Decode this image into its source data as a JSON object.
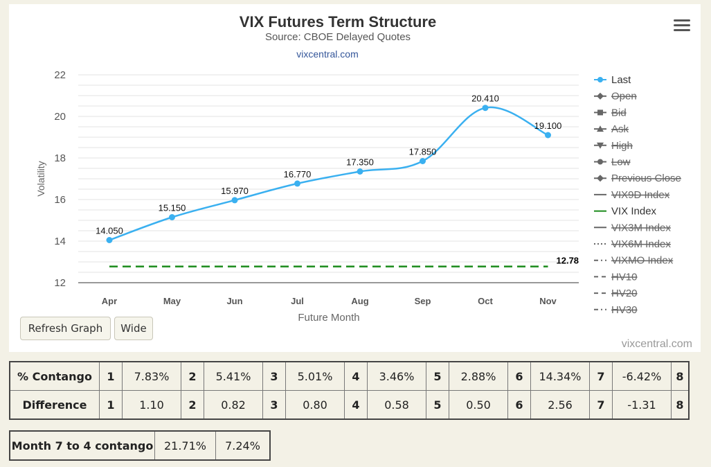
{
  "chart": {
    "title": "VIX Futures Term Structure",
    "subtitle": "Source: CBOE Delayed Quotes",
    "source_link": "vixcentral.com",
    "credit": "vixcentral.com",
    "menu_icon": "hamburger-menu-icon",
    "buttons": {
      "refresh": "Refresh Graph",
      "wide": "Wide"
    },
    "colors": {
      "last": "#3ab0f0",
      "vix_index": "#1a8a1a"
    }
  },
  "chart_data": {
    "type": "line",
    "xlabel": "Future Month",
    "ylabel": "Volatility",
    "ylim": [
      12,
      22
    ],
    "yticks": [
      12,
      14,
      16,
      18,
      20,
      22
    ],
    "categories": [
      "Apr",
      "May",
      "Jun",
      "Jul",
      "Aug",
      "Sep",
      "Oct",
      "Nov"
    ],
    "series": [
      {
        "name": "Last",
        "values": [
          14.05,
          15.15,
          15.97,
          16.77,
          17.35,
          17.85,
          20.41,
          19.1
        ],
        "labels": [
          "14.050",
          "15.150",
          "15.970",
          "16.770",
          "17.350",
          "17.850",
          "20.410",
          "19.100"
        ]
      },
      {
        "name": "VIX Index",
        "value": 12.78,
        "label": "12.78"
      }
    ],
    "legend": {
      "placement": "right",
      "items": [
        {
          "name": "Last",
          "active": true,
          "symbol": "circle"
        },
        {
          "name": "Open",
          "active": false,
          "symbol": "diamond"
        },
        {
          "name": "Bid",
          "active": false,
          "symbol": "square"
        },
        {
          "name": "Ask",
          "active": false,
          "symbol": "triangle"
        },
        {
          "name": "High",
          "active": false,
          "symbol": "triangle-down"
        },
        {
          "name": "Low",
          "active": false,
          "symbol": "circle"
        },
        {
          "name": "Previous Close",
          "active": false,
          "symbol": "diamond"
        },
        {
          "name": "VIX9D Index",
          "active": false,
          "symbol": "solid"
        },
        {
          "name": "VIX Index",
          "active": true,
          "symbol": "solid-green"
        },
        {
          "name": "VIX3M Index",
          "active": false,
          "symbol": "solid"
        },
        {
          "name": "VIX6M Index",
          "active": false,
          "symbol": "dotted"
        },
        {
          "name": "VIXMO Index",
          "active": false,
          "symbol": "dashdot"
        },
        {
          "name": "HV10",
          "active": false,
          "symbol": "dash"
        },
        {
          "name": "HV20",
          "active": false,
          "symbol": "dash"
        },
        {
          "name": "HV30",
          "active": false,
          "symbol": "dashdot"
        }
      ]
    }
  },
  "contango_table": {
    "rows": [
      {
        "label": "% Contango",
        "cells": [
          [
            "1",
            "7.83%"
          ],
          [
            "2",
            "5.41%"
          ],
          [
            "3",
            "5.01%"
          ],
          [
            "4",
            "3.46%"
          ],
          [
            "5",
            "2.88%"
          ],
          [
            "6",
            "14.34%"
          ],
          [
            "7",
            "-6.42%"
          ]
        ],
        "last": "8"
      },
      {
        "label": "Difference",
        "cells": [
          [
            "1",
            "1.10"
          ],
          [
            "2",
            "0.82"
          ],
          [
            "3",
            "0.80"
          ],
          [
            "4",
            "0.58"
          ],
          [
            "5",
            "0.50"
          ],
          [
            "6",
            "2.56"
          ],
          [
            "7",
            "-1.31"
          ]
        ],
        "last": "8"
      }
    ]
  },
  "month_table": {
    "label": "Month 7 to 4 contango",
    "values": [
      "21.71%",
      "7.24%"
    ]
  }
}
